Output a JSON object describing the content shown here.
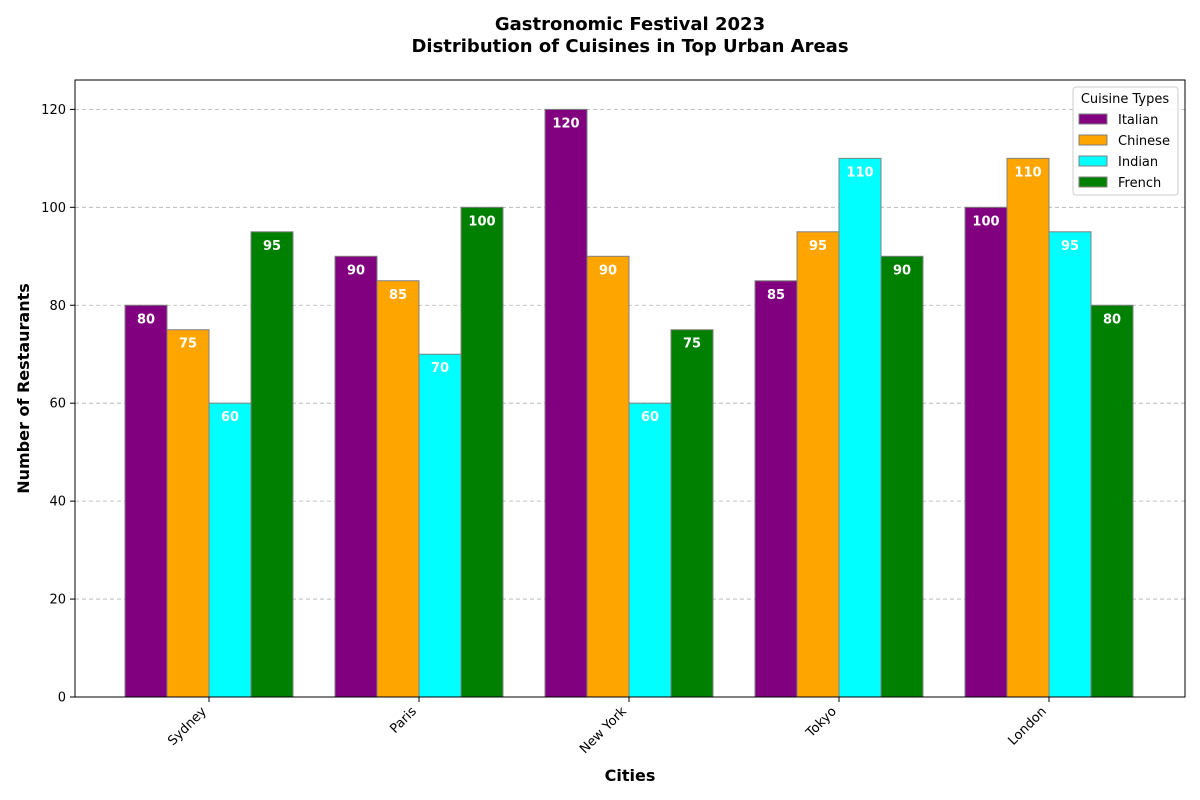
{
  "chart_data": {
    "type": "bar",
    "title": "Gastronomic Festival 2023",
    "subtitle": "Distribution of Cuisines in Top Urban Areas",
    "xlabel": "Cities",
    "ylabel": "Number of Restaurants",
    "categories": [
      "Sydney",
      "Paris",
      "New York",
      "Tokyo",
      "London"
    ],
    "series": [
      {
        "name": "Italian",
        "color": "#800080",
        "values": [
          80,
          90,
          120,
          85,
          100
        ]
      },
      {
        "name": "Chinese",
        "color": "#FFA500",
        "values": [
          75,
          85,
          90,
          95,
          110
        ]
      },
      {
        "name": "Indian",
        "color": "#00FFFF",
        "values": [
          60,
          70,
          60,
          110,
          95
        ]
      },
      {
        "name": "French",
        "color": "#008000",
        "values": [
          95,
          100,
          75,
          90,
          80
        ]
      }
    ],
    "ylim": [
      0,
      126
    ],
    "yticks": [
      0,
      20,
      40,
      60,
      80,
      100,
      120
    ],
    "grid": true,
    "legend": {
      "title": "Cuisine Types",
      "position": "top-right"
    }
  }
}
